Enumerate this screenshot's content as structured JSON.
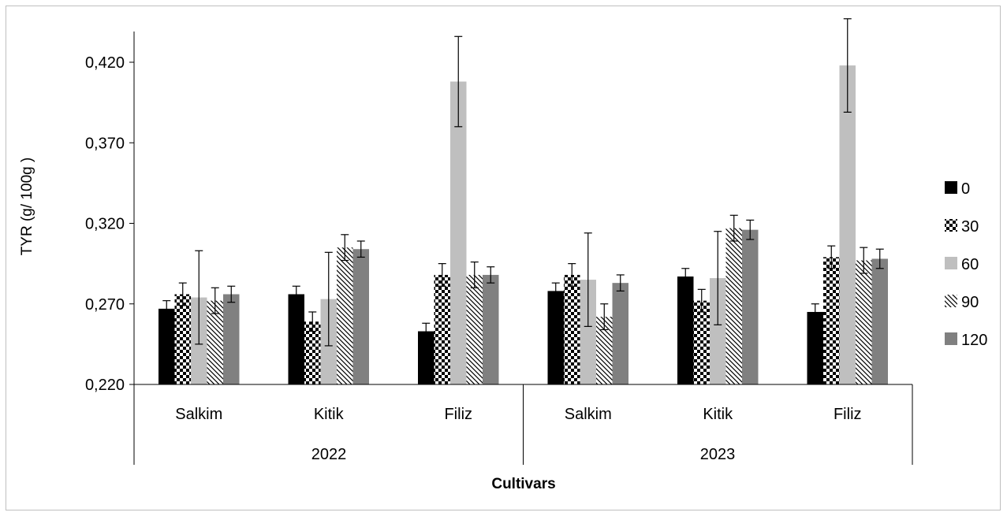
{
  "chart_data": {
    "type": "bar",
    "title": "",
    "xlabel": "Cultivars",
    "ylabel": "TYR (g/ 100g )",
    "ylim": [
      0.22,
      0.44
    ],
    "yticks": [
      0.22,
      0.27,
      0.32,
      0.37,
      0.42
    ],
    "ytick_labels": [
      "0,220",
      "0,270",
      "0,320",
      "0,370",
      "0,420"
    ],
    "groups": [
      {
        "label": "2022",
        "categories": [
          "Salkim",
          "Kitik",
          "Filiz"
        ]
      },
      {
        "label": "2023",
        "categories": [
          "Salkim",
          "Kitik",
          "Filiz"
        ]
      }
    ],
    "categories": [
      "Salkim",
      "Kitik",
      "Filiz",
      "Salkim",
      "Kitik",
      "Filiz"
    ],
    "legend_position": "right",
    "series": [
      {
        "name": "0",
        "color": "#000000",
        "pattern": "solid-black",
        "values": [
          0.267,
          0.276,
          0.253,
          0.278,
          0.287,
          0.265
        ],
        "errors": [
          0.005,
          0.005,
          0.005,
          0.005,
          0.005,
          0.005
        ]
      },
      {
        "name": "30",
        "color": "#000000",
        "pattern": "checker",
        "values": [
          0.276,
          0.259,
          0.288,
          0.288,
          0.272,
          0.299
        ],
        "errors": [
          0.007,
          0.006,
          0.007,
          0.007,
          0.007,
          0.007
        ]
      },
      {
        "name": "60",
        "color": "#bfbfbf",
        "pattern": "solid-light-gray",
        "values": [
          0.274,
          0.273,
          0.408,
          0.285,
          0.286,
          0.418
        ],
        "errors": [
          0.029,
          0.029,
          0.028,
          0.029,
          0.029,
          0.029
        ]
      },
      {
        "name": "90",
        "color": "#000000",
        "pattern": "diagonal",
        "values": [
          0.272,
          0.305,
          0.288,
          0.262,
          0.317,
          0.297
        ],
        "errors": [
          0.008,
          0.008,
          0.008,
          0.008,
          0.008,
          0.008
        ]
      },
      {
        "name": "120",
        "color": "#808080",
        "pattern": "solid-dark-gray",
        "values": [
          0.276,
          0.304,
          0.288,
          0.283,
          0.316,
          0.298
        ],
        "errors": [
          0.005,
          0.005,
          0.005,
          0.005,
          0.006,
          0.006
        ]
      }
    ]
  }
}
